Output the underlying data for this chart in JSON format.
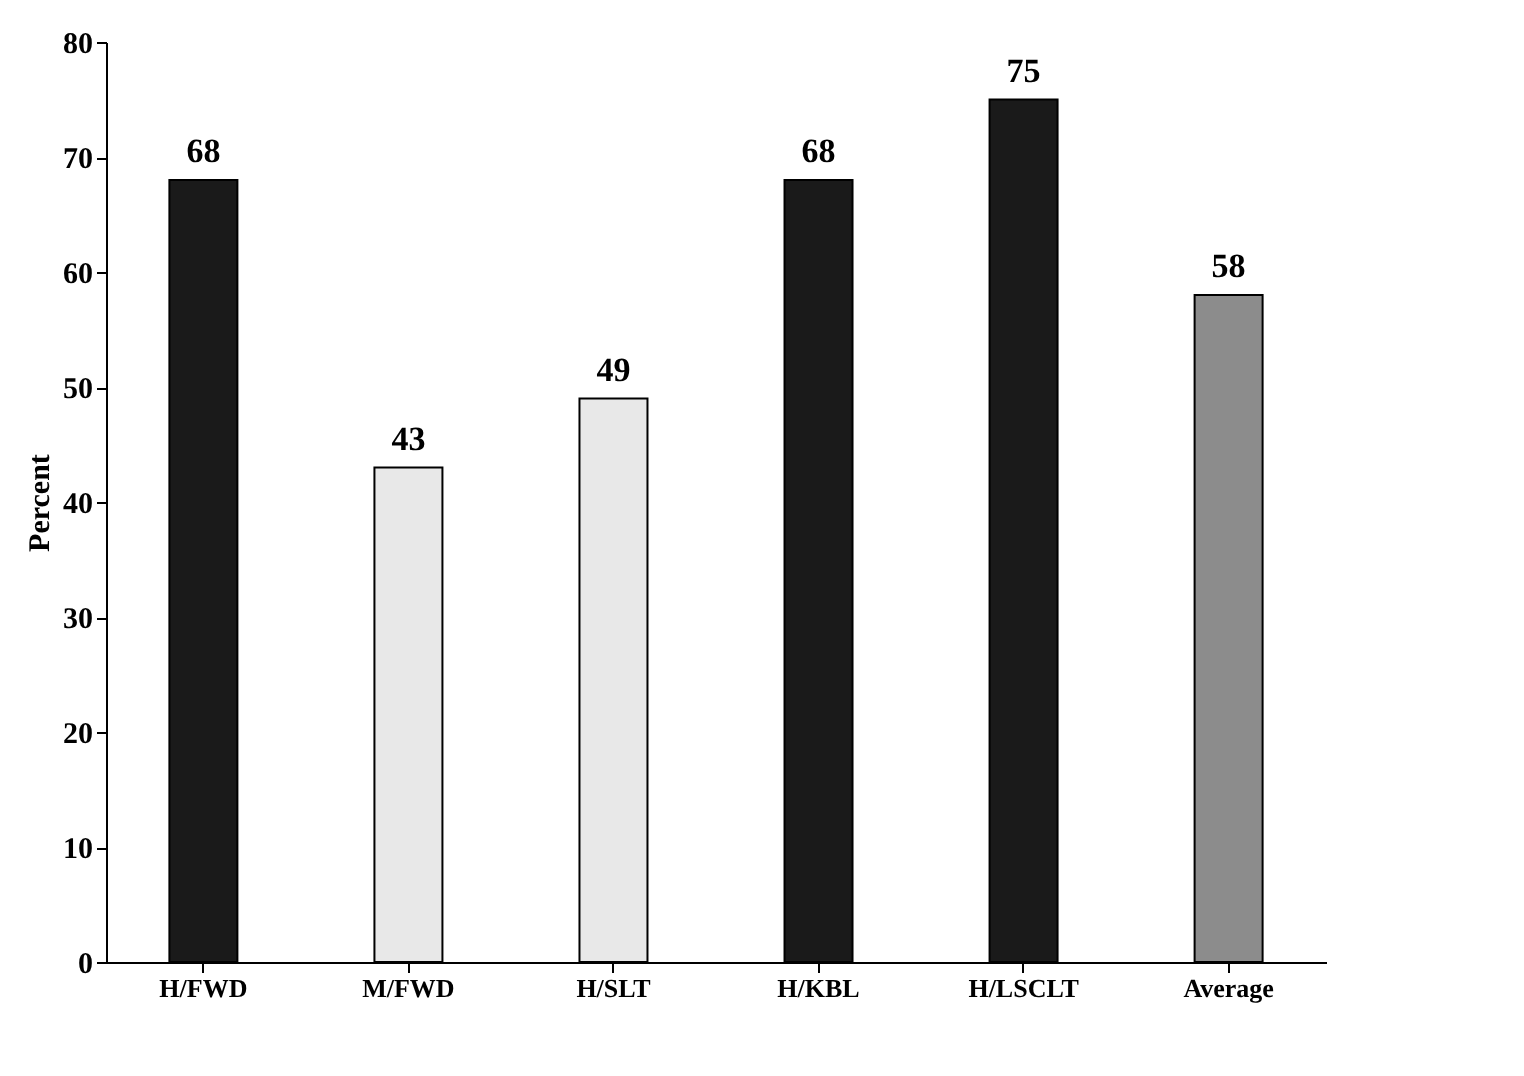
{
  "chart_data": {
    "type": "bar",
    "ylabel": "Percent",
    "categories": [
      "H/FWD",
      "M/FWD",
      "H/SLT",
      "H/KBL",
      "H/LSCLT",
      "Average"
    ],
    "values": [
      68,
      43,
      49,
      68,
      75,
      58
    ],
    "colors": [
      "#1a1a1a",
      "#e8e8e8",
      "#e8e8e8",
      "#1a1a1a",
      "#1a1a1a",
      "#8c8c8c"
    ],
    "ylim": [
      0,
      80
    ],
    "yticks": [
      0,
      10,
      20,
      30,
      40,
      50,
      60,
      70,
      80
    ],
    "grid": false,
    "data_labels": true
  }
}
